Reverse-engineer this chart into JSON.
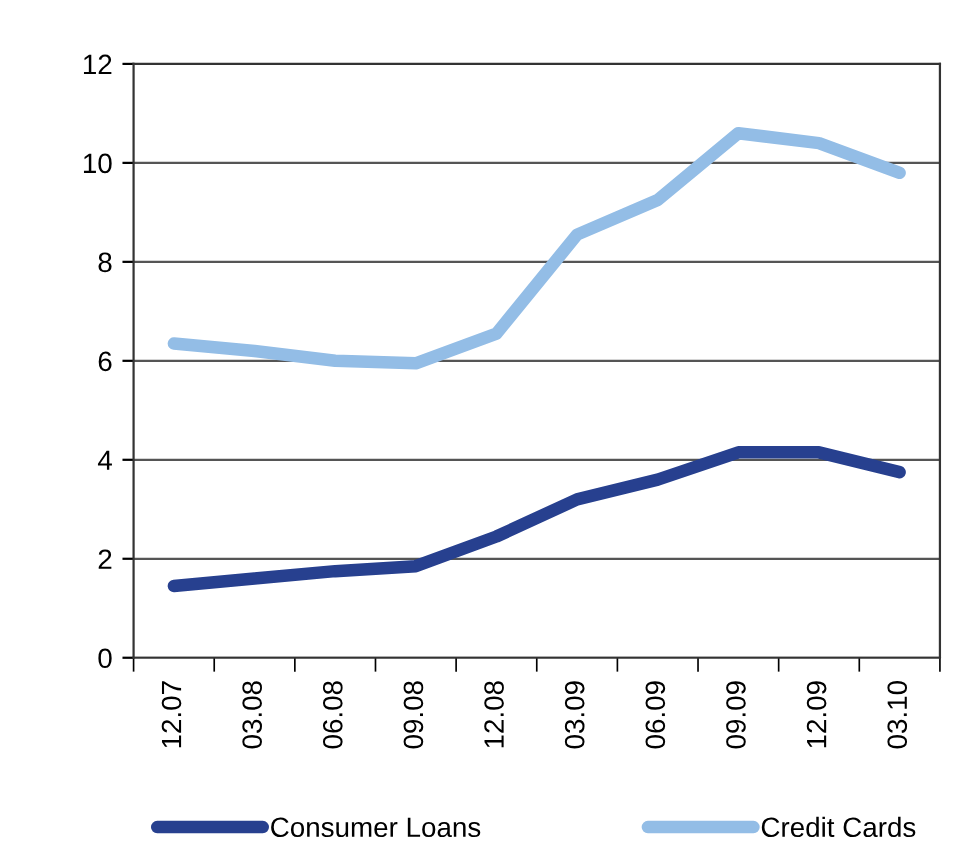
{
  "chart_data": {
    "type": "line",
    "categories": [
      "12.07",
      "03.08",
      "06.08",
      "09.08",
      "12.08",
      "03.09",
      "06.09",
      "09.09",
      "12.09",
      "03.10"
    ],
    "series": [
      {
        "name": "Consumer Loans",
        "color": "#27408f",
        "values": [
          1.45,
          1.6,
          1.75,
          1.85,
          2.45,
          3.2,
          3.6,
          4.15,
          4.15,
          3.75
        ]
      },
      {
        "name": "Credit Cards",
        "color": "#93bde6",
        "values": [
          6.35,
          6.2,
          6.0,
          5.95,
          6.55,
          8.55,
          9.25,
          10.6,
          10.4,
          9.8
        ]
      }
    ],
    "ylim": [
      0,
      12
    ],
    "yticks": [
      0,
      2,
      4,
      6,
      8,
      10,
      12
    ],
    "grid": "y",
    "legend": "bottom",
    "marker": "none",
    "line_style": "solid"
  }
}
